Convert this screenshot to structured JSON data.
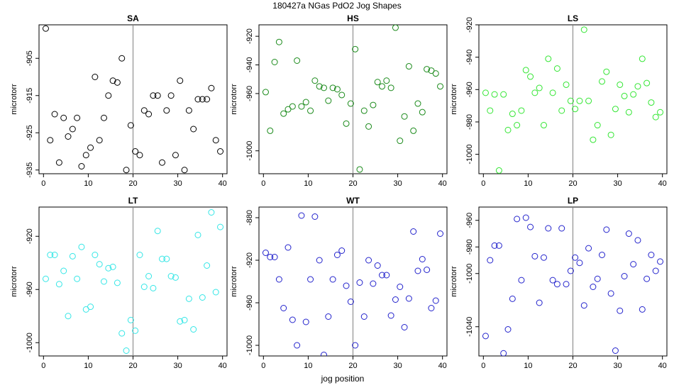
{
  "figure": {
    "title": "180427a   NGas PdO2 Jog Shapes",
    "xlabel": "jog position"
  },
  "chart_data": [
    {
      "type": "scatter",
      "title": "SA",
      "ylabel": "microtorr",
      "xlim": [
        -1,
        41
      ],
      "ylim": [
        -936,
        -896
      ],
      "yticks": [
        -905,
        -915,
        -925,
        -935
      ],
      "xticks": [
        0,
        10,
        20,
        30,
        40
      ],
      "vline": 20,
      "color": "#000000",
      "x": [
        0.5,
        1.5,
        2.5,
        3.5,
        4.5,
        5.5,
        6.5,
        7.5,
        8.5,
        9.5,
        10.5,
        11.5,
        12.5,
        13.5,
        14.5,
        15.5,
        16.5,
        17.5,
        18.5,
        19.5,
        20.5,
        21.5,
        22.5,
        23.5,
        24.5,
        25.5,
        26.5,
        27.5,
        28.5,
        29.5,
        30.5,
        31.5,
        32.5,
        33.5,
        34.5,
        35.5,
        36.5,
        37.5,
        38.5,
        39.5
      ],
      "y": [
        -897,
        -927,
        -920,
        -933,
        -921,
        -926,
        -924,
        -921,
        -934,
        -931,
        -929,
        -910,
        -927,
        -921,
        -915,
        -911,
        -911.5,
        -905,
        -935,
        -923,
        -930,
        -931,
        -919,
        -920,
        -915,
        -915,
        -933,
        -919,
        -915,
        -931,
        -911,
        -935,
        -919,
        -924,
        -916,
        -916,
        -916,
        -913,
        -927,
        -930
      ]
    },
    {
      "type": "scatter",
      "title": "HS",
      "ylabel": "microtorr",
      "xlim": [
        -1,
        41
      ],
      "ylim": [
        -1016,
        -912
      ],
      "yticks": [
        -920,
        -940,
        -960,
        -1000
      ],
      "xticks": [
        0,
        10,
        20,
        30,
        40
      ],
      "vline": 20,
      "color": "#1a8a1a",
      "x": [
        0.5,
        1.5,
        2.5,
        3.5,
        4.5,
        5.5,
        6.5,
        7.5,
        8.5,
        9.5,
        10.5,
        11.5,
        12.5,
        13.5,
        14.5,
        15.5,
        16.5,
        17.5,
        18.5,
        19.5,
        20.5,
        21.5,
        22.5,
        23.5,
        24.5,
        25.5,
        26.5,
        27.5,
        28.5,
        29.5,
        30.5,
        31.5,
        32.5,
        33.5,
        34.5,
        35.5,
        36.5,
        37.5,
        38.5,
        39.5
      ],
      "y": [
        -959,
        -986,
        -938,
        -924,
        -974,
        -971,
        -969,
        -937,
        -969,
        -966,
        -972,
        -951,
        -955,
        -956,
        -965,
        -956,
        -957,
        -961,
        -981,
        -967,
        -929,
        -1013,
        -972,
        -983,
        -968,
        -952,
        -955,
        -951,
        -956,
        -914,
        -993,
        -976,
        -941,
        -986,
        -967,
        -973,
        -943,
        -944,
        -946,
        -955
      ]
    },
    {
      "type": "scatter",
      "title": "LS",
      "ylabel": "microtorr",
      "xlim": [
        -1,
        41
      ],
      "ylim": [
        -1012,
        -920
      ],
      "yticks": [
        -920,
        -940,
        -960,
        -980,
        -1000
      ],
      "xticks": [
        0,
        10,
        20,
        30,
        40
      ],
      "vline": 20,
      "color": "#33e633",
      "x": [
        0.5,
        1.5,
        2.5,
        3.5,
        4.5,
        5.5,
        6.5,
        7.5,
        8.5,
        9.5,
        10.5,
        11.5,
        12.5,
        13.5,
        14.5,
        15.5,
        16.5,
        17.5,
        18.5,
        19.5,
        20.5,
        21.5,
        22.5,
        23.5,
        24.5,
        25.5,
        26.5,
        27.5,
        28.5,
        29.5,
        30.5,
        31.5,
        32.5,
        33.5,
        34.5,
        35.5,
        36.5,
        37.5,
        38.5,
        39.5
      ],
      "y": [
        -962,
        -973,
        -963,
        -1010,
        -963,
        -985,
        -975,
        -982,
        -973,
        -948,
        -952,
        -962,
        -959,
        -982,
        -941,
        -962,
        -947,
        -973,
        -957,
        -967,
        -972,
        -967,
        -923,
        -967,
        -991,
        -982,
        -955,
        -949,
        -988,
        -972,
        -957,
        -964,
        -974,
        -963,
        -958,
        -941,
        -956,
        -968,
        -977,
        -974
      ]
    },
    {
      "type": "scatter",
      "title": "LT",
      "ylabel": "microtorr",
      "xlim": [
        -1,
        41
      ],
      "ylim": [
        -1010,
        -898
      ],
      "yticks": [
        -920,
        -960,
        -1000
      ],
      "xticks": [
        0,
        10,
        20,
        30,
        40
      ],
      "vline": 20,
      "color": "#33e6e6",
      "x": [
        0.5,
        1.5,
        2.5,
        3.5,
        4.5,
        5.5,
        6.5,
        7.5,
        8.5,
        9.5,
        10.5,
        11.5,
        12.5,
        13.5,
        14.5,
        15.5,
        16.5,
        17.5,
        18.5,
        19.5,
        20.5,
        21.5,
        22.5,
        23.5,
        24.5,
        25.5,
        26.5,
        27.5,
        28.5,
        29.5,
        30.5,
        31.5,
        32.5,
        33.5,
        34.5,
        35.5,
        36.5,
        37.5,
        38.5,
        39.5
      ],
      "y": [
        -952,
        -934,
        -934,
        -956,
        -946,
        -980,
        -935,
        -952,
        -928,
        -975,
        -973,
        -934,
        -941,
        -954,
        -944,
        -943,
        -955,
        -993,
        -1006,
        -983,
        -991,
        -934,
        -958,
        -950,
        -959,
        -916,
        -937,
        -937,
        -950,
        -951,
        -984,
        -983,
        -967,
        -990,
        -919,
        -966,
        -942,
        -902,
        -962,
        -913
      ]
    },
    {
      "type": "scatter",
      "title": "WT",
      "ylabel": "microtorr",
      "xlim": [
        -1,
        41
      ],
      "ylim": [
        -1010,
        -870
      ],
      "yticks": [
        -880,
        -920,
        -960,
        -1000
      ],
      "xticks": [
        0,
        10,
        20,
        30,
        40
      ],
      "vline": 20,
      "color": "#2222cc",
      "x": [
        0.5,
        1.5,
        2.5,
        3.5,
        4.5,
        5.5,
        6.5,
        7.5,
        8.5,
        9.5,
        10.5,
        11.5,
        12.5,
        13.5,
        14.5,
        15.5,
        16.5,
        17.5,
        18.5,
        19.5,
        20.5,
        21.5,
        22.5,
        23.5,
        24.5,
        25.5,
        26.5,
        27.5,
        28.5,
        29.5,
        30.5,
        31.5,
        32.5,
        33.5,
        34.5,
        35.5,
        36.5,
        37.5,
        38.5,
        39.5
      ],
      "y": [
        -913,
        -917,
        -917,
        -938,
        -965,
        -908,
        -976,
        -1000,
        -878,
        -978,
        -938,
        -879,
        -920,
        -1009,
        -973,
        -938,
        -915,
        -911,
        -944,
        -959,
        -1000,
        -941,
        -973,
        -920,
        -942,
        -925,
        -934,
        -934,
        -972,
        -957,
        -945,
        -983,
        -956,
        -893,
        -930,
        -919,
        -929,
        -965,
        -958,
        -895
      ]
    },
    {
      "type": "scatter",
      "title": "LP",
      "ylabel": "microtorr",
      "xlim": [
        -1,
        41
      ],
      "ylim": [
        -1062,
        -950
      ],
      "yticks": [
        -960,
        -980,
        -1000,
        -1040
      ],
      "xticks": [
        0,
        10,
        20,
        30,
        40
      ],
      "vline": 20,
      "color": "#2222cc",
      "x": [
        0.5,
        1.5,
        2.5,
        3.5,
        4.5,
        5.5,
        6.5,
        7.5,
        8.5,
        9.5,
        10.5,
        11.5,
        12.5,
        13.5,
        14.5,
        15.5,
        16.5,
        17.5,
        18.5,
        19.5,
        20.5,
        21.5,
        22.5,
        23.5,
        24.5,
        25.5,
        26.5,
        27.5,
        28.5,
        29.5,
        30.5,
        31.5,
        32.5,
        33.5,
        34.5,
        35.5,
        36.5,
        37.5,
        38.5,
        39.5
      ],
      "y": [
        -1047,
        -990,
        -979,
        -979,
        -1060,
        -1042,
        -1019,
        -959,
        -1005,
        -958,
        -965,
        -987,
        -1022,
        -988,
        -966,
        -1005,
        -1008,
        -966,
        -1008,
        -998,
        -988,
        -992,
        -1024,
        -981,
        -1010,
        -1004,
        -986,
        -967,
        -1015,
        -1058,
        -1028,
        -1002,
        -970,
        -993,
        -975,
        -1027,
        -1004,
        -986,
        -998,
        -991
      ]
    }
  ]
}
